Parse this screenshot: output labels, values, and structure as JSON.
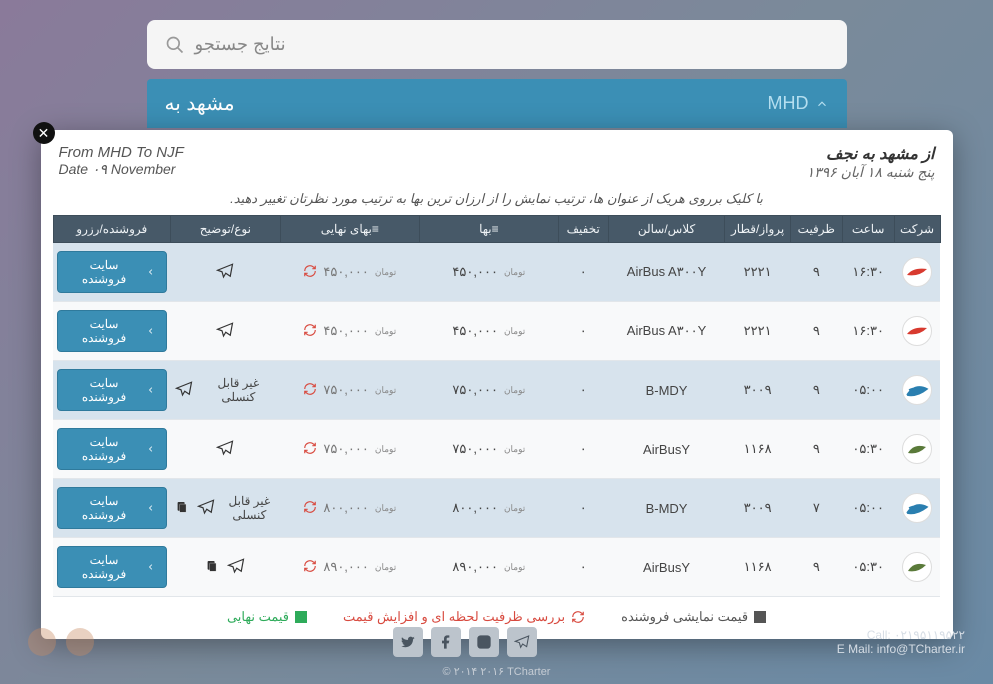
{
  "bg": {
    "search_label": "نتایج جستجو",
    "route_right": "مشهد به",
    "route_code": "MHD"
  },
  "modal": {
    "header_right_line1": "از مشهد به نجف",
    "header_right_line2": "پنج شنبه ۱۸ آبان ۱۳۹۶",
    "header_left_line1": "From MHD To NJF",
    "header_left_line2": "Date ۰۹ November",
    "sort_hint": "با کلیک برروی هریک از عنوان ها، ترتیب نمایش را از ارزان ترین بها به ترتیب مورد نظرتان تغییر دهید.",
    "columns": {
      "company": "شرکت",
      "time": "ساعت",
      "capacity": "ظرفیت",
      "flight": "پرواز/قطار",
      "class": "کلاس/سالن",
      "discount": "تخفیف",
      "price": "≡بها",
      "final": "≡بهای نهایی",
      "type": "نوع/توضیح",
      "seller": "فروشنده/رزرو"
    },
    "currency": "تومان",
    "seller_btn": "سایت فروشنده",
    "note_noncancel": "غیر قابل کنسلی",
    "rows": [
      {
        "airline": "A",
        "time": "۱۶:۳۰",
        "cap": "۹",
        "flight": "۲۲۲۱",
        "class": "AirBus A۳۰۰Y",
        "disc": "۰",
        "price": "۴۵۰,۰۰۰",
        "final": "۴۵۰,۰۰۰",
        "note": "",
        "doc": false
      },
      {
        "airline": "A",
        "time": "۱۶:۳۰",
        "cap": "۹",
        "flight": "۲۲۲۱",
        "class": "AirBus A۳۰۰Y",
        "disc": "۰",
        "price": "۴۵۰,۰۰۰",
        "final": "۴۵۰,۰۰۰",
        "note": "",
        "doc": false
      },
      {
        "airline": "B",
        "time": "۰۵:۰۰",
        "cap": "۹",
        "flight": "۳۰۰۹",
        "class": "B-MDY",
        "disc": "۰",
        "price": "۷۵۰,۰۰۰",
        "final": "۷۵۰,۰۰۰",
        "note": "غیر قابل کنسلی",
        "doc": false
      },
      {
        "airline": "C",
        "time": "۰۵:۳۰",
        "cap": "۹",
        "flight": "۱۱۶۸",
        "class": "AirBusY",
        "disc": "۰",
        "price": "۷۵۰,۰۰۰",
        "final": "۷۵۰,۰۰۰",
        "note": "",
        "doc": false
      },
      {
        "airline": "B",
        "time": "۰۵:۰۰",
        "cap": "۷",
        "flight": "۳۰۰۹",
        "class": "B-MDY",
        "disc": "۰",
        "price": "۸۰۰,۰۰۰",
        "final": "۸۰۰,۰۰۰",
        "note": "غیر قابل کنسلی",
        "doc": true
      },
      {
        "airline": "C",
        "time": "۰۵:۳۰",
        "cap": "۹",
        "flight": "۱۱۶۸",
        "class": "AirBusY",
        "disc": "۰",
        "price": "۸۹۰,۰۰۰",
        "final": "۸۹۰,۰۰۰",
        "note": "",
        "doc": true
      }
    ],
    "legend": {
      "display": "قیمت نمایشی فروشنده",
      "check": "بررسی ظرفیت لحظه ای و افزایش قیمت",
      "final": "قیمت نهایی"
    }
  },
  "footer": {
    "call": "Call: ۰۲۱۹۵۱۱۹۵۲۲",
    "email": "E Mail: info@TCharter.ir",
    "copyright": "© ۲۰۱۴ ۲۰۱۶ TCharter"
  },
  "colors": {
    "header_bg": "#475968",
    "accent": "#3b8fb5",
    "row_odd": "#d7e3ed",
    "refresh": "#d84a3f",
    "green": "#2eab5a"
  }
}
